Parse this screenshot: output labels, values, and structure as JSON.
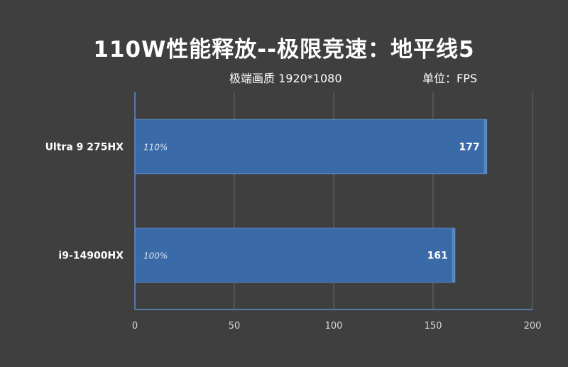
{
  "chart_data": {
    "type": "bar",
    "orientation": "horizontal",
    "title": "110W性能释放--极限竞速：地平线5",
    "subtitle_left": "极端画质 1920*1080",
    "subtitle_right": "单位：FPS",
    "categories": [
      "Ultra 9 275HX",
      "i9-14900HX"
    ],
    "series": [
      {
        "values": [
          177,
          161
        ],
        "annotations": [
          "110%",
          "100%"
        ]
      }
    ],
    "xlim": [
      0,
      200
    ],
    "xticks": [
      0,
      50,
      100,
      150,
      200
    ],
    "grid": true,
    "colors": {
      "bar": "#3a6aa8",
      "bar_edge": "#5a88c4",
      "grid": "#6a6a6a",
      "axis": "#5b8dc8",
      "background": "#3f3f3f"
    }
  }
}
